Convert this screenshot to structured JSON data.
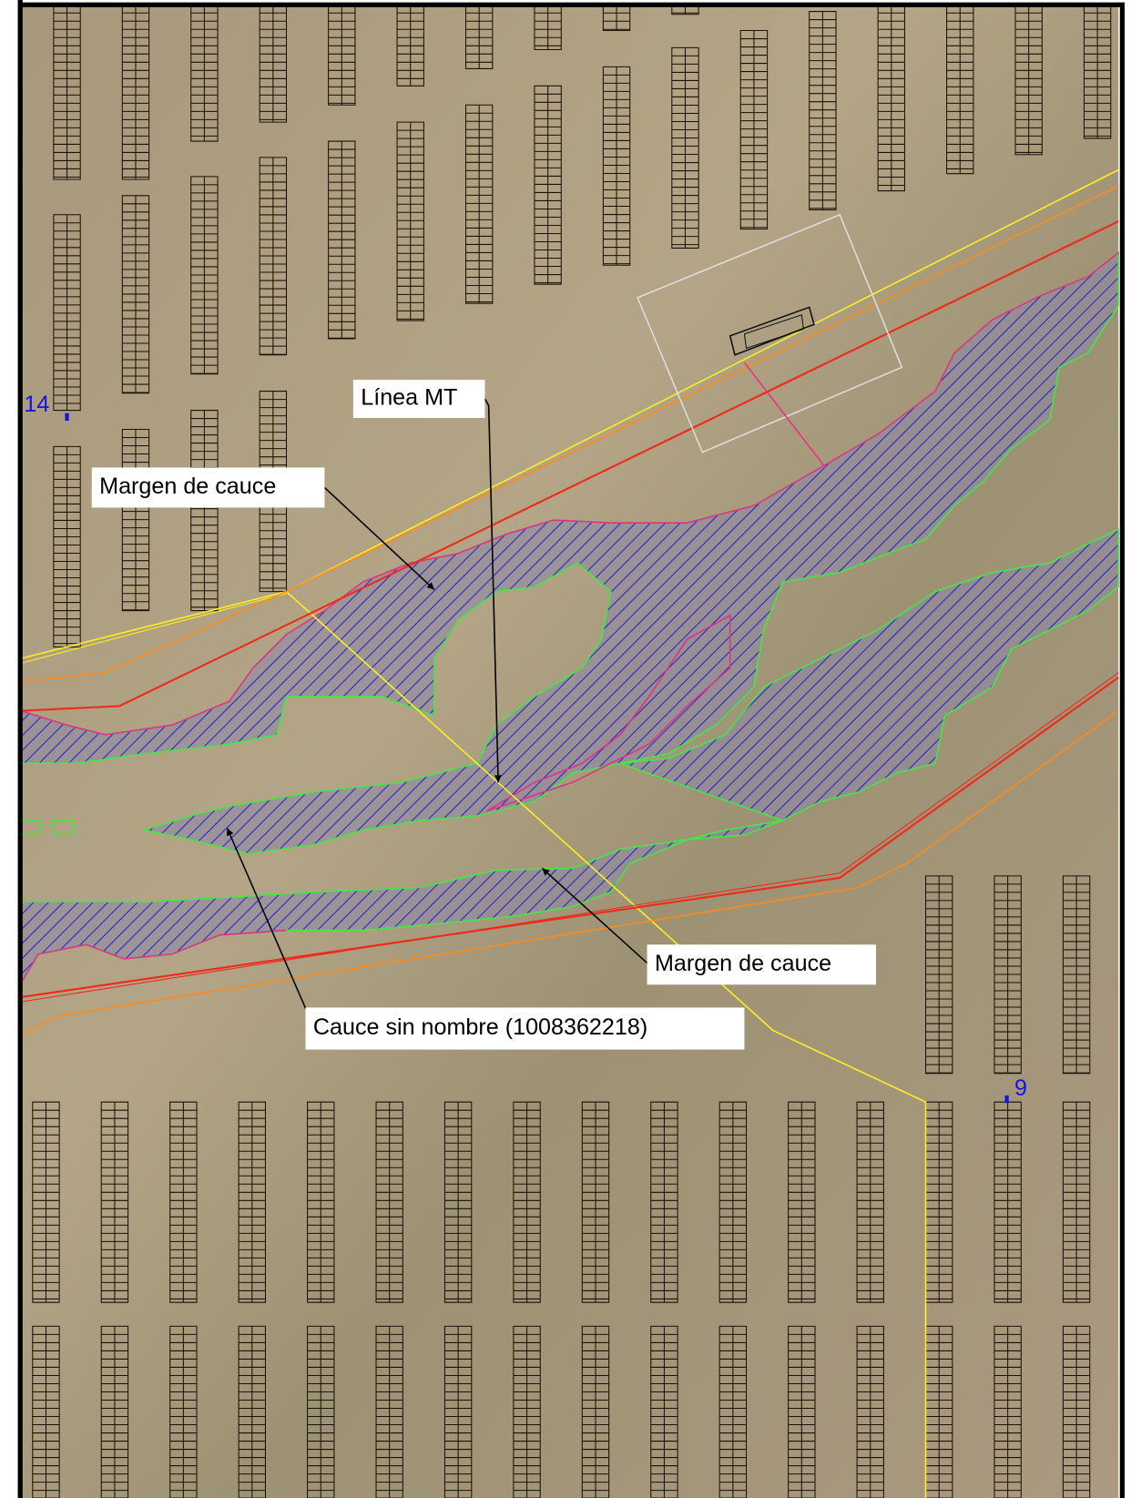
{
  "annotations": [
    "Línea MT",
    "Margen de cauce",
    "Margen de cauce",
    "Cauce sin nombre (1008362218)"
  ],
  "points": [
    "14",
    "9"
  ]
}
